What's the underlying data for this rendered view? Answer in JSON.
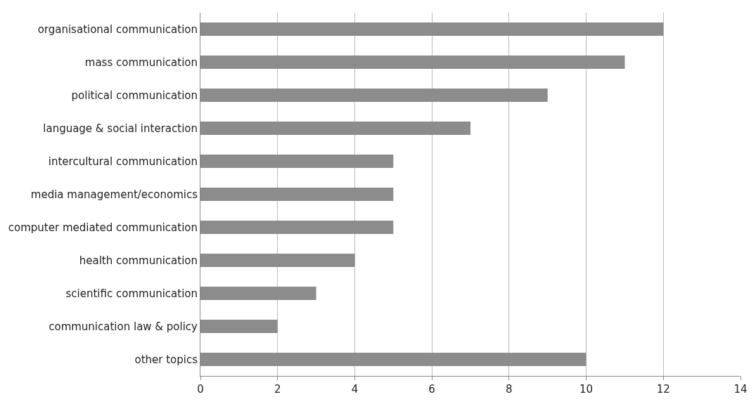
{
  "chart_data": {
    "type": "bar",
    "orientation": "horizontal",
    "categories": [
      "organisational communication",
      "mass communication",
      "political communication",
      "language & social interaction",
      "intercultural communication",
      "media management/economics",
      "computer mediated communication",
      "health communication",
      "scientific communication",
      "communication law & policy",
      "other topics"
    ],
    "values": [
      12,
      11,
      9,
      7,
      5,
      5,
      5,
      4,
      3,
      2,
      10
    ],
    "color": "#8c8c8c",
    "xlim": [
      0,
      14
    ],
    "xticks": [
      0,
      2,
      4,
      6,
      8,
      10,
      12,
      14
    ],
    "grid": "x",
    "legend": false
  }
}
